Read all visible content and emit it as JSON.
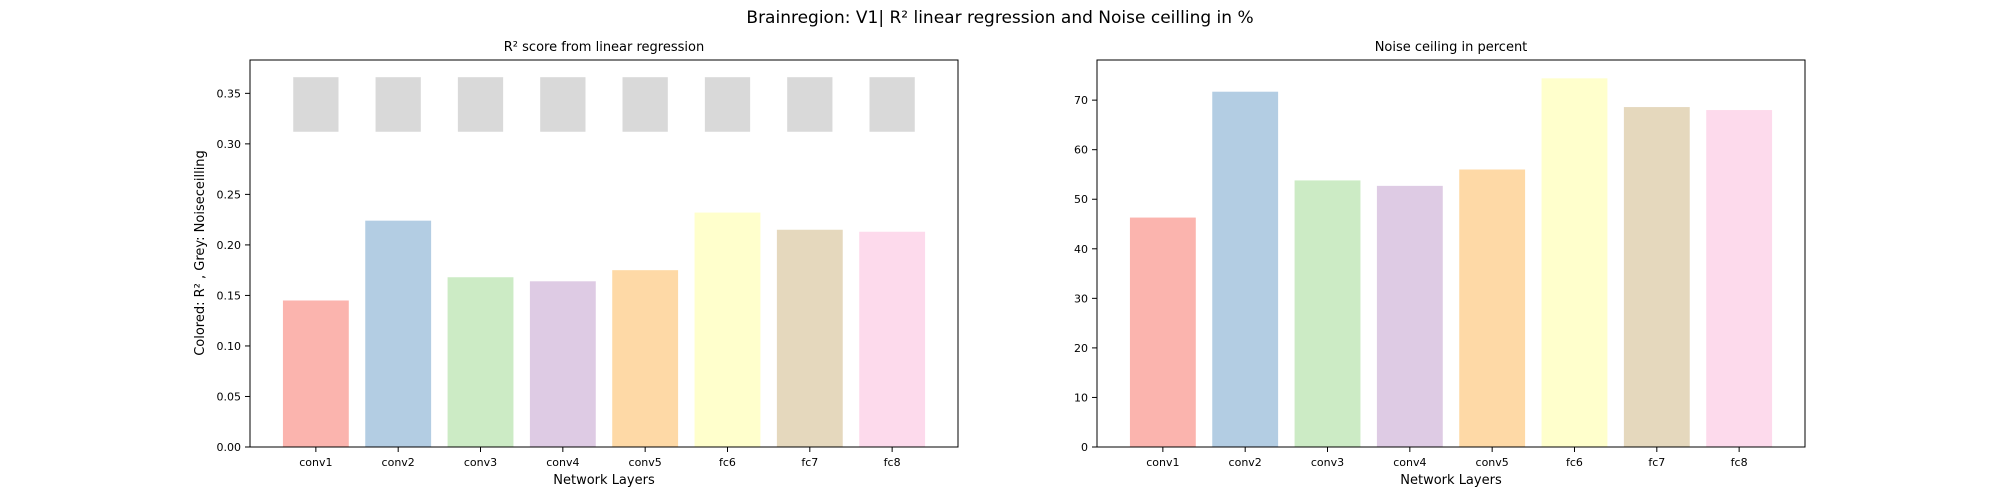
{
  "figure": {
    "suptitle": "Brainregion: V1| R² linear regression and Noise ceilling in %"
  },
  "chart_data": [
    {
      "type": "bar",
      "title": "R² score from linear regression",
      "xlabel": "Network Layers",
      "ylabel": "Colored: R² , Grey: Noiseceilling",
      "categories": [
        "conv1",
        "conv2",
        "conv3",
        "conv4",
        "conv5",
        "fc6",
        "fc7",
        "fc8"
      ],
      "series": [
        {
          "values": [
            0.145,
            0.224,
            0.168,
            0.164,
            0.175,
            0.232,
            0.215,
            0.213
          ]
        }
      ],
      "noise_ceiling_range": [
        0.312,
        0.366
      ],
      "ylim": [
        0,
        0.383
      ],
      "yticks": [
        "0.00",
        "0.05",
        "0.10",
        "0.15",
        "0.20",
        "0.25",
        "0.30",
        "0.35"
      ],
      "grid": false
    },
    {
      "type": "bar",
      "title": "Noise ceiling in percent",
      "xlabel": "Network Layers",
      "ylabel": "",
      "categories": [
        "conv1",
        "conv2",
        "conv3",
        "conv4",
        "conv5",
        "fc6",
        "fc7",
        "fc8"
      ],
      "series": [
        {
          "values": [
            46.3,
            71.7,
            53.8,
            52.7,
            56.0,
            74.4,
            68.6,
            68.0
          ]
        }
      ],
      "ylim": [
        0,
        78.1
      ],
      "yticks": [
        "0",
        "10",
        "20",
        "30",
        "40",
        "50",
        "60",
        "70"
      ],
      "grid": false
    }
  ],
  "colors": {
    "bars": [
      "#fbb4ae",
      "#b3cde3",
      "#ccebc5",
      "#decbe4",
      "#fed9a6",
      "#ffffcc",
      "#e5d8bd",
      "#fddaec"
    ],
    "noise_ceiling": "#d9d9d9",
    "axes": "#000000"
  }
}
